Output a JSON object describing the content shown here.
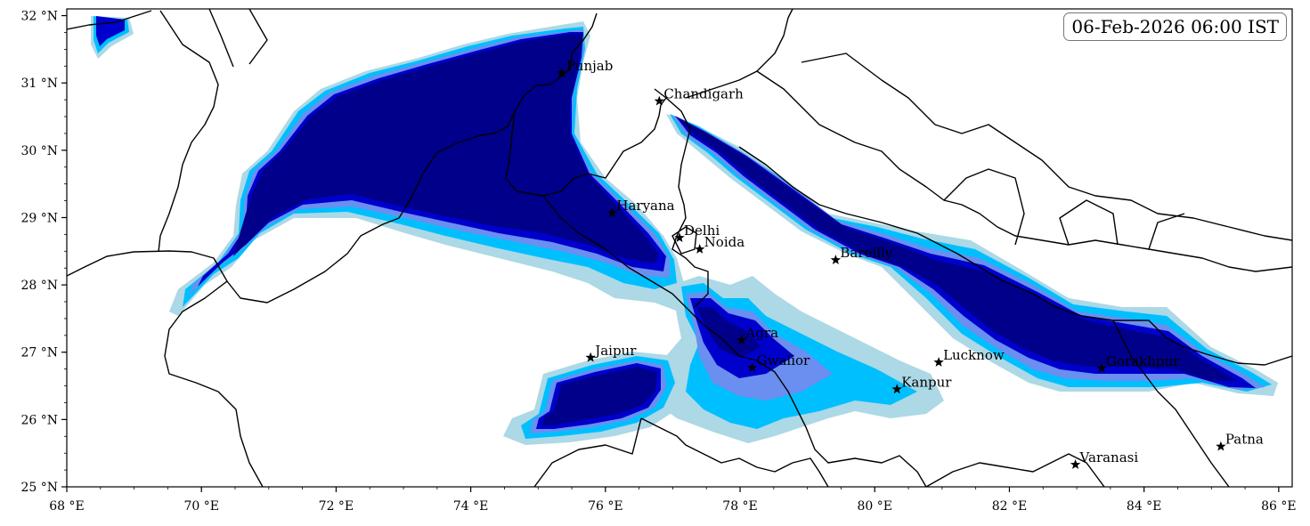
{
  "timestamp": "06-Feb-2026 06:00 IST",
  "axes": {
    "lon_min": 68,
    "lon_max": 86.2,
    "lat_min": 25,
    "lat_max": 32.1,
    "x_ticks": [
      {
        "v": 68,
        "label": "68 °E"
      },
      {
        "v": 70,
        "label": "70 °E"
      },
      {
        "v": 72,
        "label": "72 °E"
      },
      {
        "v": 74,
        "label": "74 °E"
      },
      {
        "v": 76,
        "label": "76 °E"
      },
      {
        "v": 78,
        "label": "78 °E"
      },
      {
        "v": 80,
        "label": "80 °E"
      },
      {
        "v": 82,
        "label": "82 °E"
      },
      {
        "v": 84,
        "label": "84 °E"
      },
      {
        "v": 86,
        "label": "86 °E"
      }
    ],
    "y_ticks": [
      {
        "v": 25,
        "label": "25 °N"
      },
      {
        "v": 26,
        "label": "26 °N"
      },
      {
        "v": 27,
        "label": "27 °N"
      },
      {
        "v": 28,
        "label": "28 °N"
      },
      {
        "v": 29,
        "label": "29 °N"
      },
      {
        "v": 30,
        "label": "30 °N"
      },
      {
        "v": 31,
        "label": "31 °N"
      },
      {
        "v": 32,
        "label": "32 °N"
      }
    ]
  },
  "colors": {
    "level1": "#add8e6",
    "level2": "#00bfff",
    "level3": "#6a8ff0",
    "level4": "#0000cd",
    "level5": "#00008b",
    "border": "#000000"
  },
  "cities": [
    {
      "name": "Punjab",
      "lon": 75.35,
      "lat": 31.15
    },
    {
      "name": "Chandigarh",
      "lon": 76.8,
      "lat": 30.73
    },
    {
      "name": "Haryana",
      "lon": 76.1,
      "lat": 29.07
    },
    {
      "name": "Delhi",
      "lon": 77.1,
      "lat": 28.7
    },
    {
      "name": "Noida",
      "lon": 77.4,
      "lat": 28.53
    },
    {
      "name": "Bareilly",
      "lon": 79.42,
      "lat": 28.37
    },
    {
      "name": "Agra",
      "lon": 78.02,
      "lat": 27.18
    },
    {
      "name": "Jaipur",
      "lon": 75.78,
      "lat": 26.92
    },
    {
      "name": "Gwalior",
      "lon": 78.18,
      "lat": 26.77
    },
    {
      "name": "Lucknow",
      "lon": 80.95,
      "lat": 26.85
    },
    {
      "name": "Gorakhpur",
      "lon": 83.37,
      "lat": 26.76
    },
    {
      "name": "Kanpur",
      "lon": 80.33,
      "lat": 26.45
    },
    {
      "name": "Varanasi",
      "lon": 82.98,
      "lat": 25.33
    },
    {
      "name": "Patna",
      "lon": 85.14,
      "lat": 25.6
    }
  ]
}
